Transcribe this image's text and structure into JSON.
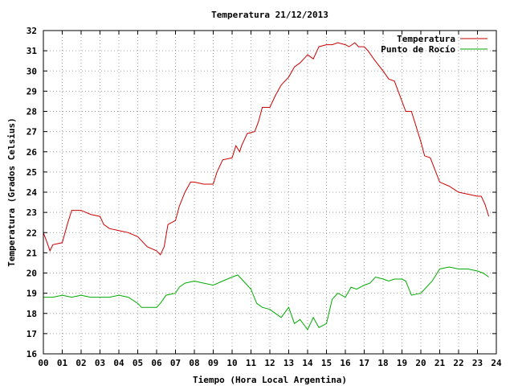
{
  "chart_data": {
    "type": "line",
    "title": "Temperatura 21/12/2013",
    "xlabel": "Tiempo (Hora Local Argentina)",
    "ylabel": "Temperatura (Grados Celsius)",
    "xlim": [
      0,
      24
    ],
    "ylim": [
      16,
      32
    ],
    "x_ticks": [
      "00",
      "01",
      "02",
      "03",
      "04",
      "05",
      "06",
      "07",
      "08",
      "09",
      "10",
      "11",
      "12",
      "13",
      "14",
      "15",
      "16",
      "17",
      "18",
      "19",
      "20",
      "21",
      "22",
      "23",
      "24"
    ],
    "y_ticks": [
      "16",
      "17",
      "18",
      "19",
      "20",
      "21",
      "22",
      "23",
      "24",
      "25",
      "26",
      "27",
      "28",
      "29",
      "30",
      "31",
      "32"
    ],
    "grid": true,
    "legend_position": "top-right",
    "series": [
      {
        "name": "Temperatura",
        "color": "#cc0000",
        "x": [
          0.0,
          0.2,
          0.35,
          0.5,
          1.0,
          1.3,
          1.5,
          2.0,
          2.5,
          3.0,
          3.2,
          3.5,
          4.0,
          4.5,
          5.0,
          5.2,
          5.5,
          6.0,
          6.2,
          6.4,
          6.6,
          7.0,
          7.2,
          7.5,
          7.8,
          8.0,
          8.5,
          9.0,
          9.2,
          9.5,
          10.0,
          10.2,
          10.4,
          10.5,
          10.8,
          11.2,
          11.4,
          11.6,
          12.0,
          12.3,
          12.6,
          13.0,
          13.3,
          13.6,
          14.0,
          14.3,
          14.6,
          15.0,
          15.3,
          15.6,
          16.0,
          16.2,
          16.5,
          16.7,
          17.0,
          17.2,
          17.5,
          18.0,
          18.3,
          18.6,
          19.0,
          19.2,
          19.5,
          20.0,
          20.2,
          20.5,
          21.0,
          21.5,
          22.0,
          22.5,
          23.0,
          23.2,
          23.4,
          23.6
        ],
        "y": [
          22.0,
          21.5,
          21.1,
          21.4,
          21.5,
          22.5,
          23.1,
          23.1,
          22.9,
          22.8,
          22.4,
          22.2,
          22.1,
          22.0,
          21.8,
          21.6,
          21.3,
          21.1,
          20.9,
          21.3,
          22.4,
          22.6,
          23.3,
          24.0,
          24.5,
          24.5,
          24.4,
          24.4,
          25.0,
          25.6,
          25.7,
          26.3,
          26.0,
          26.3,
          26.9,
          27.0,
          27.5,
          28.2,
          28.2,
          28.8,
          29.3,
          29.7,
          30.2,
          30.4,
          30.8,
          30.6,
          31.2,
          31.3,
          31.3,
          31.4,
          31.3,
          31.2,
          31.4,
          31.2,
          31.2,
          31.0,
          30.6,
          30.0,
          29.6,
          29.5,
          28.5,
          28.0,
          28.0,
          26.5,
          25.8,
          25.7,
          24.5,
          24.3,
          24.0,
          23.9,
          23.8,
          23.8,
          23.4,
          22.8
        ]
      },
      {
        "name": "Punto de Rocío",
        "color": "#00aa00",
        "x": [
          0.0,
          0.5,
          1.0,
          1.5,
          2.0,
          2.5,
          3.0,
          3.5,
          4.0,
          4.5,
          5.0,
          5.2,
          5.5,
          6.0,
          6.2,
          6.5,
          7.0,
          7.2,
          7.5,
          8.0,
          8.5,
          9.0,
          9.5,
          10.0,
          10.3,
          10.6,
          11.0,
          11.3,
          11.6,
          12.0,
          12.3,
          12.6,
          13.0,
          13.3,
          13.6,
          14.0,
          14.3,
          14.6,
          15.0,
          15.3,
          15.6,
          16.0,
          16.3,
          16.6,
          17.0,
          17.3,
          17.6,
          18.0,
          18.3,
          18.6,
          19.0,
          19.2,
          19.5,
          20.0,
          20.3,
          20.6,
          21.0,
          21.5,
          22.0,
          22.5,
          23.0,
          23.3,
          23.6
        ],
        "y": [
          18.8,
          18.8,
          18.9,
          18.8,
          18.9,
          18.8,
          18.8,
          18.8,
          18.9,
          18.8,
          18.5,
          18.3,
          18.3,
          18.3,
          18.5,
          18.9,
          19.0,
          19.3,
          19.5,
          19.6,
          19.5,
          19.4,
          19.6,
          19.8,
          19.9,
          19.6,
          19.2,
          18.5,
          18.3,
          18.2,
          18.0,
          17.8,
          18.3,
          17.5,
          17.7,
          17.2,
          17.8,
          17.3,
          17.5,
          18.7,
          19.0,
          18.8,
          19.3,
          19.2,
          19.4,
          19.5,
          19.8,
          19.7,
          19.6,
          19.7,
          19.7,
          19.6,
          18.9,
          19.0,
          19.3,
          19.6,
          20.2,
          20.3,
          20.2,
          20.2,
          20.1,
          20.0,
          19.8
        ]
      }
    ]
  }
}
